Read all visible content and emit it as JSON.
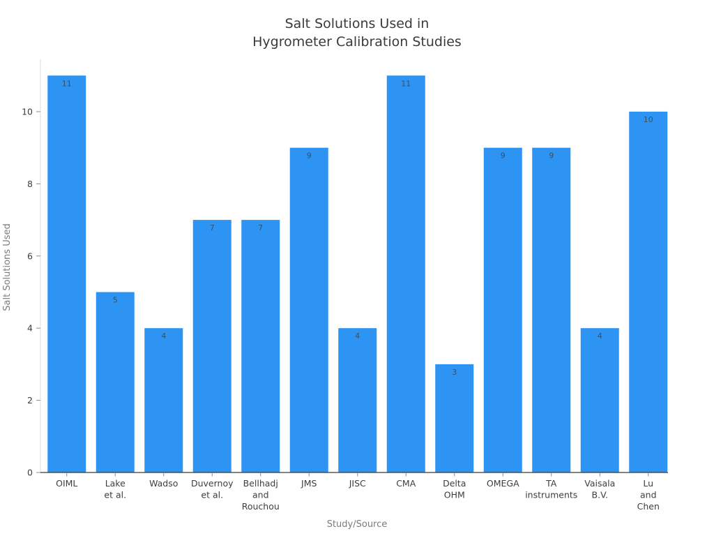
{
  "page": {
    "background_color": "#FFFFFF"
  },
  "chart_data": {
    "type": "bar",
    "title": "Salt Solutions Used in Hygrometer Calibration Studies",
    "title_lines": [
      "Salt Solutions Used in",
      "Hygrometer Calibration Studies"
    ],
    "xlabel": "Study/Source",
    "ylabel": "Salt Solutions Used",
    "categories": [
      "OIML",
      "Lake et al.",
      "Wadso",
      "Duvernoy et al.",
      "Bellhadj and Rouchou",
      "JMS",
      "JISC",
      "CMA",
      "Delta OHM",
      "OMEGA",
      "TA instruments",
      "Vaisala B.V.",
      "Lu and Chen"
    ],
    "category_lines": [
      [
        "OIML"
      ],
      [
        "Lake",
        "et al."
      ],
      [
        "Wadso"
      ],
      [
        "Duvernoy",
        "et al."
      ],
      [
        "Bellhadj",
        "and",
        "Rouchou"
      ],
      [
        "JMS"
      ],
      [
        "JISC"
      ],
      [
        "CMA"
      ],
      [
        "Delta",
        "OHM"
      ],
      [
        "OMEGA"
      ],
      [
        "TA",
        "instruments"
      ],
      [
        "Vaisala",
        "B.V."
      ],
      [
        "Lu",
        "and",
        "Chen"
      ]
    ],
    "values": [
      11,
      5,
      4,
      7,
      7,
      9,
      4,
      11,
      3,
      9,
      9,
      4,
      10
    ],
    "yticks": [
      0,
      2,
      4,
      6,
      8,
      10
    ],
    "ylim": [
      0,
      11.45
    ],
    "grid": false,
    "legend": null,
    "bar_color": "#2D94F4",
    "value_label_color": "#3B4F63",
    "title_color": "#3A3A3A",
    "axis_title_color": "#7B7B7B",
    "tick_label_color": "#3D3D3D",
    "y_axis_line_color": "#DCDCDC",
    "x_axis_line_color": "#3A3A3A",
    "tick_mark_color": "#8C8C8C"
  }
}
